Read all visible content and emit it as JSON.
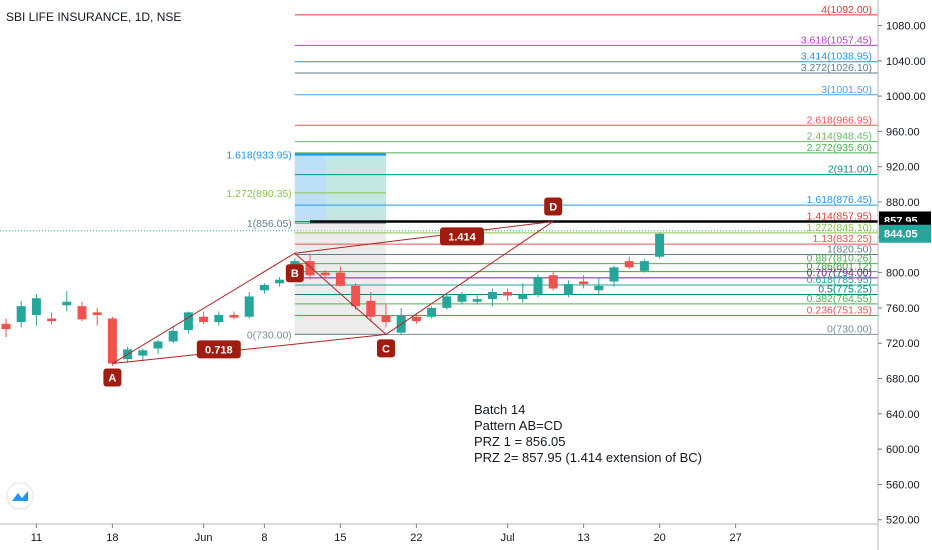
{
  "header": {
    "title": "SBI LIFE INSURANCE, 1D, NSE"
  },
  "notes": {
    "line1": "Batch 14",
    "line2": "Pattern AB=CD",
    "line3": "PRZ 1 = 856.05",
    "line4": "PRZ 2= 857.95 (1.414 extension of BC)"
  },
  "colors": {
    "up": "#26a69a",
    "down": "#ef5350",
    "pattern": "#b22222",
    "badge": "#a01c10"
  },
  "chart_data": {
    "type": "candlestick",
    "title": "SBI LIFE INSURANCE, 1D, NSE",
    "ylim": [
      510,
      1103
    ],
    "y_ticks": [
      "520.00",
      "560.00",
      "600.00",
      "640.00",
      "680.00",
      "720.00",
      "760.00",
      "800.00",
      "840.00",
      "880.00",
      "920.00",
      "960.00",
      "1000.00",
      "1040.00",
      "1080.00"
    ],
    "y_tick_values": [
      520,
      560,
      600,
      640,
      680,
      720,
      760,
      800,
      840,
      880,
      920,
      960,
      1000,
      1040,
      1080
    ],
    "x_ticks": [
      "11",
      "18",
      "Jun",
      "8",
      "15",
      "22",
      "Jul",
      "13",
      "20",
      "27"
    ],
    "x_tick_day_index": [
      2,
      7,
      13,
      17,
      22,
      27,
      33,
      38,
      43,
      48
    ],
    "candles": [
      {
        "o": 742,
        "h": 748,
        "l": 727,
        "c": 736
      },
      {
        "o": 744,
        "h": 768,
        "l": 738,
        "c": 762
      },
      {
        "o": 752,
        "h": 776,
        "l": 740,
        "c": 771
      },
      {
        "o": 748,
        "h": 755,
        "l": 741,
        "c": 745
      },
      {
        "o": 763,
        "h": 779,
        "l": 756,
        "c": 767
      },
      {
        "o": 762,
        "h": 767,
        "l": 745,
        "c": 747
      },
      {
        "o": 755,
        "h": 760,
        "l": 740,
        "c": 752
      },
      {
        "o": 748,
        "h": 750,
        "l": 694,
        "c": 697
      },
      {
        "o": 702,
        "h": 716,
        "l": 698,
        "c": 713
      },
      {
        "o": 706,
        "h": 714,
        "l": 700,
        "c": 712
      },
      {
        "o": 714,
        "h": 724,
        "l": 708,
        "c": 722
      },
      {
        "o": 722,
        "h": 740,
        "l": 720,
        "c": 734
      },
      {
        "o": 735,
        "h": 756,
        "l": 731,
        "c": 755
      },
      {
        "o": 750,
        "h": 756,
        "l": 742,
        "c": 744
      },
      {
        "o": 744,
        "h": 756,
        "l": 740,
        "c": 752
      },
      {
        "o": 752,
        "h": 756,
        "l": 747,
        "c": 749
      },
      {
        "o": 750,
        "h": 778,
        "l": 748,
        "c": 773
      },
      {
        "o": 780,
        "h": 788,
        "l": 776,
        "c": 786
      },
      {
        "o": 788,
        "h": 795,
        "l": 784,
        "c": 792
      },
      {
        "o": 795,
        "h": 816,
        "l": 790,
        "c": 813
      },
      {
        "o": 813,
        "h": 820,
        "l": 792,
        "c": 797
      },
      {
        "o": 800,
        "h": 803,
        "l": 794,
        "c": 797
      },
      {
        "o": 800,
        "h": 807,
        "l": 784,
        "c": 785
      },
      {
        "o": 785,
        "h": 788,
        "l": 758,
        "c": 762
      },
      {
        "o": 768,
        "h": 778,
        "l": 744,
        "c": 750
      },
      {
        "o": 752,
        "h": 764,
        "l": 738,
        "c": 744
      },
      {
        "o": 732,
        "h": 760,
        "l": 730,
        "c": 752
      },
      {
        "o": 750,
        "h": 754,
        "l": 742,
        "c": 745
      },
      {
        "o": 750,
        "h": 762,
        "l": 748,
        "c": 760
      },
      {
        "o": 760,
        "h": 776,
        "l": 758,
        "c": 773
      },
      {
        "o": 767,
        "h": 778,
        "l": 764,
        "c": 775
      },
      {
        "o": 767,
        "h": 776,
        "l": 764,
        "c": 770
      },
      {
        "o": 770,
        "h": 782,
        "l": 762,
        "c": 778
      },
      {
        "o": 778,
        "h": 782,
        "l": 768,
        "c": 774
      },
      {
        "o": 770,
        "h": 788,
        "l": 766,
        "c": 775
      },
      {
        "o": 775,
        "h": 798,
        "l": 772,
        "c": 795
      },
      {
        "o": 797,
        "h": 801,
        "l": 780,
        "c": 782
      },
      {
        "o": 775,
        "h": 791,
        "l": 772,
        "c": 787
      },
      {
        "o": 790,
        "h": 797,
        "l": 782,
        "c": 787
      },
      {
        "o": 780,
        "h": 794,
        "l": 774,
        "c": 785
      },
      {
        "o": 790,
        "h": 808,
        "l": 784,
        "c": 806
      },
      {
        "o": 813,
        "h": 818,
        "l": 804,
        "c": 806
      },
      {
        "o": 802,
        "h": 815,
        "l": 800,
        "c": 813
      },
      {
        "o": 818,
        "h": 845,
        "l": 816,
        "c": 844
      }
    ],
    "fib_extension_right": [
      {
        "label": "4(1092.00)",
        "price": 1092,
        "color": "#e53935"
      },
      {
        "label": "3.618(1057.45)",
        "price": 1057.45,
        "color": "#ab47bc"
      },
      {
        "label": "3.414(1038.95)",
        "price": 1038.95,
        "color": "#2196f3"
      },
      {
        "label": "3.272(1026.10)",
        "price": 1026.1,
        "color": "#607d8b"
      },
      {
        "label": "3(1001.50)",
        "price": 1001.5,
        "color": "#42a5f5"
      },
      {
        "label": "2.618(966.95)",
        "price": 966.95,
        "color": "#ef5350"
      },
      {
        "label": "2.414(948.45)",
        "price": 948.45,
        "color": "#66bb6a"
      },
      {
        "label": "2.272(935.60)",
        "price": 935.6,
        "color": "#4caf50"
      },
      {
        "label": "2(911.00)",
        "price": 911,
        "color": "#009688"
      },
      {
        "label": "1.618(876.45)",
        "price": 876.45,
        "color": "#2196f3"
      },
      {
        "label": "1.414(857.95)",
        "price": 857.95,
        "color": "#e53935"
      },
      {
        "label": "1.272(845.10)",
        "price": 845.1,
        "color": "#8bc34a"
      },
      {
        "label": "1.13(832.25)",
        "price": 832.25,
        "color": "#ef5350"
      },
      {
        "label": "1(820.50)",
        "price": 820.5,
        "color": "#607d8b"
      },
      {
        "label": "0.887(810.26)",
        "price": 810.26,
        "color": "#4caf50"
      },
      {
        "label": "0.786(801.12)",
        "price": 801.12,
        "color": "#43a047"
      },
      {
        "label": "0.707(794.00)",
        "price": 794,
        "color": "#7b1fa2"
      },
      {
        "label": "0.618(785.95)",
        "price": 785.95,
        "color": "#26a69a"
      },
      {
        "label": "0.5(775.25)",
        "price": 775.25,
        "color": "#00897b"
      },
      {
        "label": "0.382(764.55)",
        "price": 764.55,
        "color": "#4caf50"
      },
      {
        "label": "0.236(751.35)",
        "price": 751.35,
        "color": "#ef5350"
      },
      {
        "label": "0(730.00)",
        "price": 730,
        "color": "#78909c"
      }
    ],
    "fib_retracement_left": [
      {
        "label": "1.618(933.95)",
        "price": 933.95,
        "color": "#2196f3"
      },
      {
        "label": "1.272(890.35)",
        "price": 890.35,
        "color": "#8bc34a"
      },
      {
        "label": "1(856.05)",
        "price": 856.05,
        "color": "#607d8b"
      },
      {
        "label": "0(730.00)",
        "price": 730,
        "color": "#78909c"
      }
    ],
    "pattern_points": [
      {
        "label": "A",
        "day": 7,
        "price": 697,
        "badge": "below"
      },
      {
        "label": "B",
        "day": 19,
        "price": 822,
        "badge": "below"
      },
      {
        "label": "C",
        "day": 25,
        "price": 730,
        "badge": "below"
      },
      {
        "label": "D",
        "day": 36,
        "price": 857.95,
        "badge": "above"
      }
    ],
    "ratio_labels": [
      {
        "text": "0.718",
        "day": 14,
        "price": 713
      },
      {
        "text": "1.414",
        "day": 30,
        "price": 841
      }
    ],
    "price_tags": [
      {
        "text": "857.95",
        "price": 857.95,
        "color": "#000000"
      },
      {
        "text": "856.05",
        "price": 856.05,
        "color": "#000000"
      },
      {
        "text": "844.05",
        "price": 844.05,
        "color": "#26a69a"
      }
    ],
    "current_price": 844.05
  }
}
